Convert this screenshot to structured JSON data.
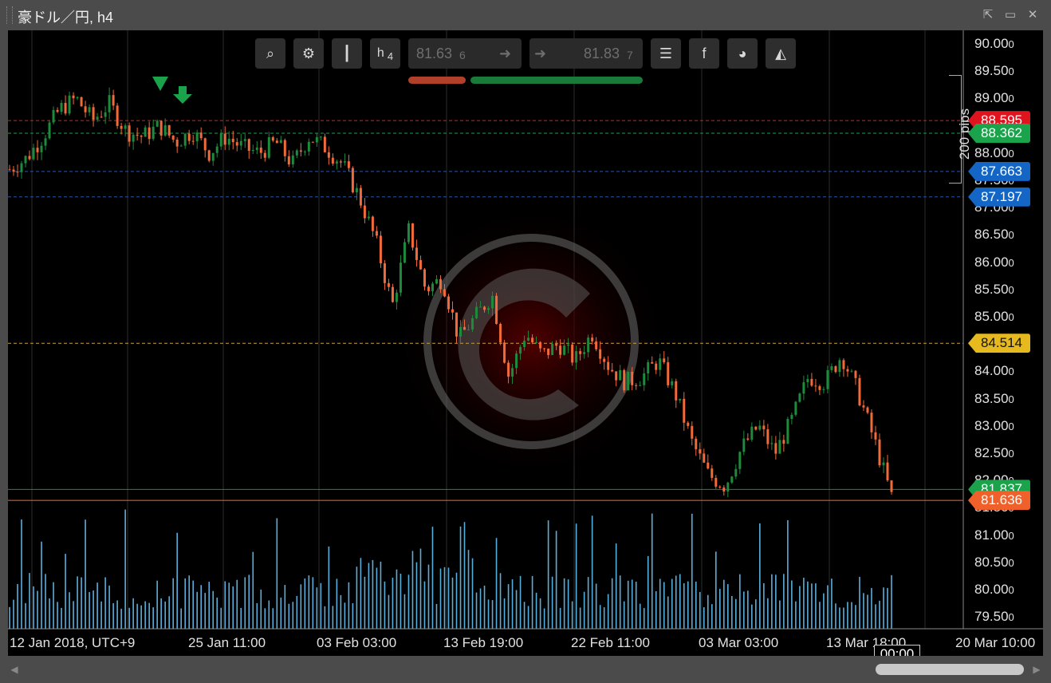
{
  "window": {
    "title": "豪ドル／円, h4"
  },
  "toolbar": {
    "timeframe_h": "h",
    "timeframe_n": "4",
    "bid": "81.63",
    "bid_pip": "6",
    "ask": "81.83",
    "ask_pip": "7"
  },
  "price_axis": [
    "90.00",
    "89.50",
    "89.00",
    "88.50",
    "88.00",
    "87.50",
    "87.00",
    "86.50",
    "86.00",
    "85.50",
    "85.00",
    "84.50",
    "84.00",
    "83.50",
    "83.00",
    "82.50",
    "82.00",
    "81.50",
    "81.00",
    "80.50",
    "80.00",
    "79.50"
  ],
  "price_axis_pipette": "0",
  "price_tags": [
    {
      "value": "88.595",
      "color": "#e0141e"
    },
    {
      "value": "88.362",
      "color": "#1aa34a"
    },
    {
      "value": "87.663",
      "color": "#1466c6"
    },
    {
      "value": "87.197",
      "color": "#1466c6"
    },
    {
      "value": "84.514",
      "color": "#e6b91e"
    },
    {
      "value": "81.837",
      "color": "#1aa34a"
    },
    {
      "value": "81.636",
      "color": "#f0602a"
    }
  ],
  "pip_scale": "200 pips",
  "time_axis": [
    "12 Jan 2018, UTC+9",
    "25 Jan 11:00",
    "03 Feb 03:00",
    "13 Feb 19:00",
    "22 Feb 11:00",
    "03 Mar 03:00",
    "13 Mar 18:00",
    "20 Mar 10:00"
  ],
  "cursor_time": "00:00",
  "colors": {
    "bull": "#1e8a3c",
    "bear": "#f06a3a",
    "volume": "#5aaedc"
  },
  "chart_data": {
    "type": "candlestick",
    "ylim": [
      79.5,
      90.0
    ],
    "close_path": [
      87.7,
      87.9,
      88.3,
      88.8,
      89.0,
      88.6,
      88.9,
      88.4,
      88.3,
      88.5,
      88.2,
      88.4,
      88.0,
      88.3,
      88.1,
      88.0,
      88.2,
      87.8,
      88.3,
      88.1,
      87.8,
      87.2,
      86.4,
      85.2,
      86.6,
      85.5,
      85.7,
      84.6,
      85.0,
      85.4,
      83.9,
      84.7,
      84.3,
      84.5,
      84.2,
      84.7,
      84.1,
      83.8,
      83.9,
      84.2,
      83.6,
      82.7,
      82.1,
      81.9,
      82.6,
      83.0,
      82.5,
      83.1,
      83.9,
      83.8,
      84.3,
      83.6,
      82.7,
      81.7
    ]
  }
}
